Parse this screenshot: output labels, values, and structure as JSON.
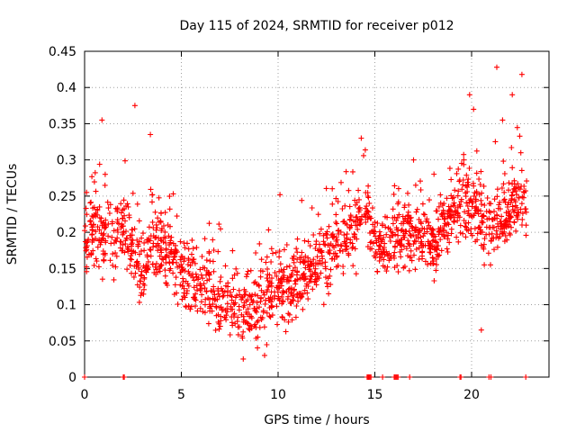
{
  "chart_data": {
    "type": "scatter",
    "title": "Day 115 of 2024, SRMTID for receiver p012",
    "xlabel": "GPS time / hours",
    "ylabel": "SRMTID / TECUs",
    "xlim": [
      0,
      24
    ],
    "ylim": [
      0,
      0.45
    ],
    "xticks": [
      0,
      5,
      10,
      15,
      20
    ],
    "xtick_labels": [
      "0",
      "5",
      "10",
      "15",
      "20"
    ],
    "yticks": [
      0,
      0.05,
      0.1,
      0.15,
      0.2,
      0.25,
      0.3,
      0.35,
      0.4,
      0.45
    ],
    "ytick_labels": [
      "0",
      "0.05",
      "0.1",
      "0.15",
      "0.2",
      "0.25",
      "0.3",
      "0.35",
      "0.4",
      "0.45"
    ],
    "grid": true,
    "marker": "+",
    "color": "#ff0000",
    "series": [
      {
        "name": "SRMTID",
        "trend": [
          {
            "x": 0.0,
            "y": 0.19
          },
          {
            "x": 0.5,
            "y": 0.21
          },
          {
            "x": 1.0,
            "y": 0.19
          },
          {
            "x": 1.5,
            "y": 0.19
          },
          {
            "x": 2.0,
            "y": 0.21
          },
          {
            "x": 2.5,
            "y": 0.17
          },
          {
            "x": 3.0,
            "y": 0.14
          },
          {
            "x": 3.5,
            "y": 0.19
          },
          {
            "x": 4.0,
            "y": 0.18
          },
          {
            "x": 4.5,
            "y": 0.16
          },
          {
            "x": 5.0,
            "y": 0.14
          },
          {
            "x": 5.5,
            "y": 0.14
          },
          {
            "x": 6.0,
            "y": 0.13
          },
          {
            "x": 6.5,
            "y": 0.12
          },
          {
            "x": 7.0,
            "y": 0.1
          },
          {
            "x": 7.5,
            "y": 0.1
          },
          {
            "x": 8.0,
            "y": 0.09
          },
          {
            "x": 8.5,
            "y": 0.1
          },
          {
            "x": 9.0,
            "y": 0.1
          },
          {
            "x": 9.5,
            "y": 0.12
          },
          {
            "x": 10.0,
            "y": 0.12
          },
          {
            "x": 10.5,
            "y": 0.12
          },
          {
            "x": 11.0,
            "y": 0.13
          },
          {
            "x": 11.5,
            "y": 0.14
          },
          {
            "x": 12.0,
            "y": 0.16
          },
          {
            "x": 12.5,
            "y": 0.17
          },
          {
            "x": 13.0,
            "y": 0.18
          },
          {
            "x": 13.5,
            "y": 0.19
          },
          {
            "x": 14.0,
            "y": 0.21
          },
          {
            "x": 14.5,
            "y": 0.23
          },
          {
            "x": 15.0,
            "y": 0.19
          },
          {
            "x": 15.5,
            "y": 0.18
          },
          {
            "x": 16.0,
            "y": 0.19
          },
          {
            "x": 16.5,
            "y": 0.2
          },
          {
            "x": 17.0,
            "y": 0.2
          },
          {
            "x": 17.5,
            "y": 0.19
          },
          {
            "x": 18.0,
            "y": 0.19
          },
          {
            "x": 18.5,
            "y": 0.2
          },
          {
            "x": 19.0,
            "y": 0.22
          },
          {
            "x": 19.5,
            "y": 0.24
          },
          {
            "x": 20.0,
            "y": 0.24
          },
          {
            "x": 20.5,
            "y": 0.21
          },
          {
            "x": 21.0,
            "y": 0.2
          },
          {
            "x": 21.5,
            "y": 0.21
          },
          {
            "x": 22.0,
            "y": 0.23
          },
          {
            "x": 22.5,
            "y": 0.25
          },
          {
            "x": 22.9,
            "y": 0.25
          }
        ],
        "spread": 0.045,
        "x_range": [
          0,
          22.9
        ],
        "outliers": [
          {
            "x": 0.9,
            "y": 0.355
          },
          {
            "x": 2.6,
            "y": 0.375
          },
          {
            "x": 3.4,
            "y": 0.335
          },
          {
            "x": 10.1,
            "y": 0.252
          },
          {
            "x": 8.2,
            "y": 0.025
          },
          {
            "x": 9.3,
            "y": 0.03
          },
          {
            "x": 14.3,
            "y": 0.33
          },
          {
            "x": 17.0,
            "y": 0.3
          },
          {
            "x": 19.9,
            "y": 0.39
          },
          {
            "x": 20.5,
            "y": 0.065
          },
          {
            "x": 21.3,
            "y": 0.428
          },
          {
            "x": 22.1,
            "y": 0.39
          },
          {
            "x": 22.6,
            "y": 0.418
          },
          {
            "x": 20.1,
            "y": 0.37
          },
          {
            "x": 21.6,
            "y": 0.355
          }
        ],
        "zero_points_x": [
          0,
          2.0,
          2.05,
          14.6,
          14.65,
          14.7,
          14.75,
          14.8,
          15.4,
          16.0,
          16.05,
          16.1,
          16.15,
          16.2,
          16.8,
          19.4,
          19.45,
          20.9,
          21.0,
          22.8
        ]
      }
    ]
  }
}
